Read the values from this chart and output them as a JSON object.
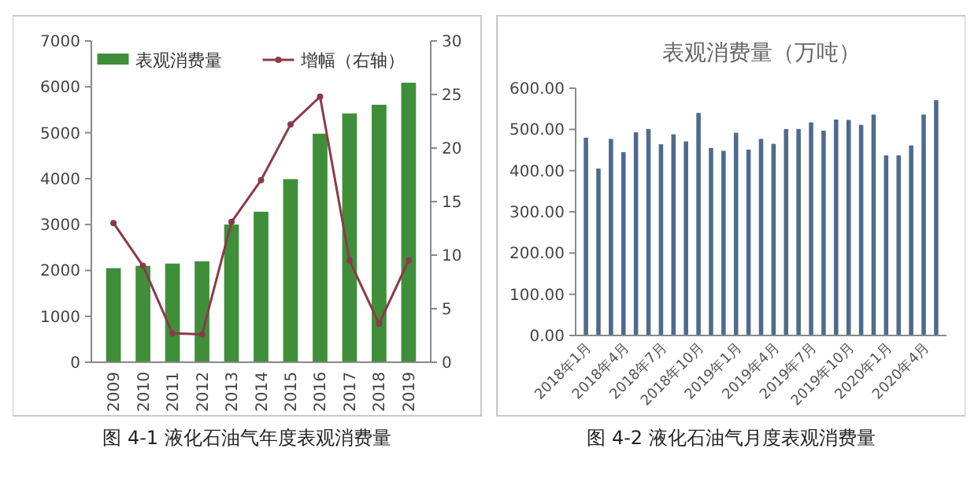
{
  "chart_data": [
    {
      "type": "bar",
      "categories": [
        "2009",
        "2010",
        "2011",
        "2012",
        "2013",
        "2014",
        "2015",
        "2016",
        "2017",
        "2018",
        "2019"
      ],
      "series": [
        {
          "name": "表观消费量",
          "color": "#3f8f3a",
          "values": [
            2050,
            2100,
            2150,
            2200,
            3000,
            3280,
            3990,
            4980,
            5420,
            5610,
            6090
          ]
        },
        {
          "name": "增幅（右轴）",
          "type": "line",
          "axis": "y2",
          "color": "#8b3a4a",
          "marker": "circle",
          "values": [
            13,
            9,
            2.7,
            2.6,
            13.1,
            17,
            22.2,
            24.8,
            9.5,
            3.6,
            9.5
          ]
        }
      ],
      "ylim": [
        0,
        7000
      ],
      "yticks": [
        0,
        1000,
        2000,
        3000,
        4000,
        5000,
        6000,
        7000
      ],
      "y2lim": [
        0,
        30
      ],
      "y2ticks": [
        0,
        5,
        10,
        15,
        20,
        25,
        30
      ],
      "legend": "top",
      "grid": false,
      "annotations": [
        "图 4-1 液化石油气年度表观消费量"
      ]
    },
    {
      "type": "bar",
      "title": "表观消费量（万吨）",
      "categories": [
        "2018年1月",
        null,
        null,
        "2018年4月",
        null,
        null,
        "2018年7月",
        null,
        null,
        "2018年10月",
        null,
        null,
        "2019年1月",
        null,
        null,
        "2019年4月",
        null,
        null,
        "2019年7月",
        null,
        null,
        "2019年10月",
        null,
        null,
        "2020年1月",
        null,
        null,
        "2020年4月",
        null
      ],
      "values": [
        480,
        405,
        477,
        445,
        493,
        501,
        464,
        488,
        471,
        540,
        455,
        448,
        492,
        451,
        477,
        465,
        501,
        501,
        517,
        497,
        524,
        523,
        511,
        536,
        437,
        437,
        461,
        536,
        571
      ],
      "color": "#4d6b8c",
      "ylim": [
        0,
        600
      ],
      "yticks": [
        {
          "value": 0,
          "label": "0.00"
        },
        {
          "value": 100,
          "label": "100.00"
        },
        {
          "value": 200,
          "label": "200.00"
        },
        {
          "value": 300,
          "label": "300.00"
        },
        {
          "value": 400,
          "label": "400.00"
        },
        {
          "value": 500,
          "label": "500.00"
        },
        {
          "value": 600,
          "label": "600.00"
        }
      ],
      "grid": false,
      "annotations": [
        "图 4-2 液化石油气月度表观消费量"
      ]
    }
  ]
}
